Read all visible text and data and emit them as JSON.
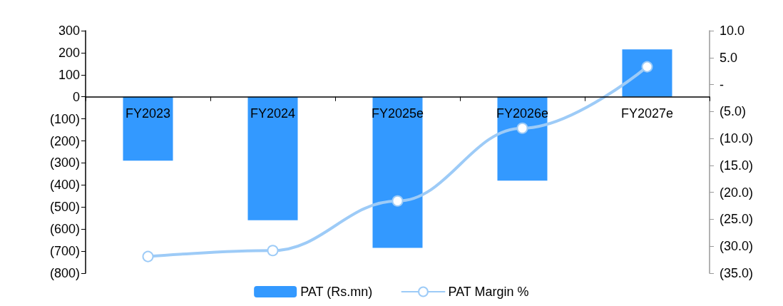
{
  "chart_data": {
    "type": "bar",
    "categories": [
      "FY2023",
      "FY2024",
      "FY2025e",
      "FY2026e",
      "FY2027e"
    ],
    "series": [
      {
        "name": "PAT (Rs.mn)",
        "color": "#3399ff",
        "values": [
          -290,
          -560,
          -685,
          -380,
          215
        ]
      },
      {
        "name": "PAT Margin %",
        "type": "line",
        "axis": "y2",
        "color": "#9dcbf7",
        "values": [
          -31.9,
          -30.8,
          -21.6,
          -8.1,
          3.3
        ]
      }
    ],
    "ylim": [
      -800,
      300
    ],
    "yticks": [
      {
        "value": -800,
        "label": "(800)"
      },
      {
        "value": -700,
        "label": "(700)"
      },
      {
        "value": -600,
        "label": "(600)"
      },
      {
        "value": -500,
        "label": "(500)"
      },
      {
        "value": -400,
        "label": "(400)"
      },
      {
        "value": -300,
        "label": "(300)"
      },
      {
        "value": -200,
        "label": "(200)"
      },
      {
        "value": -100,
        "label": "(100)"
      },
      0,
      100,
      200,
      300
    ],
    "y2lim": [
      -35,
      10
    ],
    "y2ticks": [
      {
        "value": -35,
        "label": "(35.0)"
      },
      {
        "value": -30,
        "label": "(30.0)"
      },
      {
        "value": -25,
        "label": "(25.0)"
      },
      {
        "value": -20,
        "label": "(20.0)"
      },
      {
        "value": -15,
        "label": "(15.0)"
      },
      {
        "value": -10,
        "label": "(10.0)"
      },
      {
        "value": -5,
        "label": "(5.0)"
      },
      {
        "value": 0,
        "label": "-"
      },
      {
        "value": 5,
        "label": "5.0"
      },
      {
        "value": 10,
        "label": "10.0"
      }
    ],
    "grid": false,
    "legend": "bottom",
    "marker": "circle",
    "line_style": "solid"
  }
}
